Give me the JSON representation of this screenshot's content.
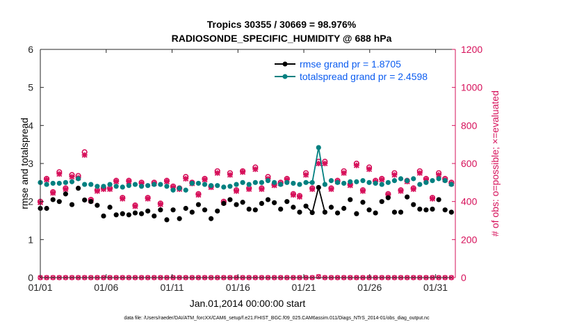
{
  "chart_data": {
    "type": "line",
    "title": "Tropics 30355 / 30669 = 98.976%",
    "subtitle": "RADIOSONDE_SPECIFIC_HUMIDITY @ 688 hPa",
    "xlabel": "Jan.01,2014 00:00:00 start",
    "ylabel_left": "rmse and totalspread",
    "ylabel_right": "# of obs: o=possible; ×=evaluated",
    "xlim": [
      0,
      31.5
    ],
    "ylim_left": [
      0,
      6
    ],
    "ylim_right": [
      0,
      1200
    ],
    "x_ticks": [
      0,
      5,
      10,
      15,
      20,
      25,
      30
    ],
    "x_tick_labels": [
      "01/01",
      "01/06",
      "01/11",
      "01/16",
      "01/21",
      "01/26",
      "01/31"
    ],
    "y_left_ticks": [
      "0",
      "1",
      "2",
      "3",
      "4",
      "5",
      "6"
    ],
    "y_right_ticks": [
      "0",
      "200",
      "400",
      "600",
      "800",
      "1000",
      "1200"
    ],
    "legend": [
      {
        "label": "rmse grand pr = 1.8705",
        "color": "#000000"
      },
      {
        "label": "totalspread grand pr = 2.4598",
        "color": "#008080"
      }
    ],
    "colors": {
      "rmse": "#000000",
      "spread": "#008080",
      "obs": "#d6105a",
      "legend_text": "#0b5cf0"
    },
    "series": [
      {
        "name": "rmse",
        "axis": "left",
        "values": [
          1.82,
          1.82,
          2.05,
          2.0,
          2.2,
          1.92,
          2.35,
          2.04,
          2.0,
          1.9,
          1.62,
          1.85,
          1.65,
          1.68,
          1.65,
          1.7,
          1.68,
          1.75,
          1.62,
          1.78,
          1.52,
          1.78,
          1.55,
          1.82,
          1.72,
          1.92,
          1.78,
          1.55,
          1.75,
          1.95,
          2.05,
          1.92,
          1.98,
          1.8,
          1.78,
          1.95,
          2.05,
          1.97,
          1.8,
          2.0,
          1.85,
          1.72,
          1.88,
          1.71,
          2.37,
          1.72,
          1.85,
          1.7,
          1.82,
          2.05,
          1.68,
          1.98,
          1.78,
          1.7,
          2.0,
          2.1,
          1.72,
          1.72,
          2.12,
          1.92,
          1.8,
          1.78,
          1.8,
          2.05,
          1.78,
          1.72
        ]
      },
      {
        "name": "totalspread",
        "axis": "left",
        "values": [
          2.5,
          2.45,
          2.48,
          2.48,
          2.5,
          2.52,
          2.6,
          2.45,
          2.45,
          2.4,
          2.4,
          2.45,
          2.4,
          2.38,
          2.42,
          2.45,
          2.4,
          2.42,
          2.45,
          2.45,
          2.4,
          2.3,
          2.35,
          2.3,
          2.48,
          2.48,
          2.45,
          2.42,
          2.42,
          2.38,
          2.4,
          2.45,
          2.5,
          2.45,
          2.5,
          2.5,
          2.55,
          2.5,
          2.45,
          2.5,
          2.48,
          2.45,
          2.5,
          2.5,
          3.42,
          2.45,
          2.55,
          2.5,
          2.48,
          2.52,
          2.52,
          2.55,
          2.5,
          2.48,
          2.45,
          2.5,
          2.55,
          2.6,
          2.55,
          2.6,
          2.45,
          2.5,
          2.55,
          2.6,
          2.55,
          2.45
        ]
      },
      {
        "name": "obs_possible",
        "axis": "right",
        "values": [
          400,
          520,
          450,
          555,
          470,
          540,
          535,
          660,
          410,
          460,
          470,
          470,
          510,
          420,
          510,
          380,
          500,
          420,
          500,
          390,
          510,
          480,
          470,
          530,
          500,
          440,
          520,
          480,
          560,
          400,
          550,
          460,
          560,
          470,
          580,
          470,
          530,
          490,
          500,
          520,
          440,
          430,
          550,
          470,
          610,
          610,
          470,
          510,
          560,
          490,
          600,
          460,
          580,
          510,
          520,
          440,
          550,
          460,
          510,
          470,
          560,
          520,
          420,
          550,
          520,
          500
        ]
      },
      {
        "name": "obs_evaluated",
        "axis": "right",
        "values": [
          395,
          515,
          445,
          545,
          465,
          530,
          525,
          645,
          405,
          455,
          465,
          465,
          505,
          415,
          505,
          375,
          495,
          415,
          495,
          385,
          505,
          475,
          465,
          520,
          495,
          435,
          515,
          475,
          550,
          395,
          540,
          455,
          555,
          465,
          570,
          465,
          520,
          485,
          495,
          515,
          435,
          425,
          540,
          465,
          600,
          600,
          465,
          505,
          550,
          485,
          590,
          455,
          570,
          505,
          515,
          435,
          540,
          455,
          505,
          465,
          550,
          515,
          415,
          540,
          515,
          495
        ]
      },
      {
        "name": "obs_zero",
        "axis": "right",
        "values": [
          0,
          0,
          0,
          0,
          0,
          0,
          0,
          0,
          0,
          0,
          0,
          0,
          0,
          0,
          0,
          0,
          0,
          0,
          0,
          0,
          0,
          0,
          0,
          0,
          0,
          0,
          0,
          0,
          0,
          0,
          0,
          0,
          0,
          0,
          0,
          0,
          0,
          0,
          0,
          0,
          0,
          0,
          0,
          0,
          5,
          0,
          0,
          0,
          0,
          0,
          0,
          0,
          0,
          0,
          0,
          0,
          0,
          0,
          0,
          0,
          0,
          0,
          0,
          0,
          0,
          0
        ]
      }
    ],
    "x_step": 0.48
  },
  "footnote": "data file: /Users/raeder/DAI/ATM_forcXX/CAM6_setup/f.e21.FHIST_BGC.f09_025.CAM6assim.011/Diags_NTrS_2014-01/obs_diag_output.nc"
}
